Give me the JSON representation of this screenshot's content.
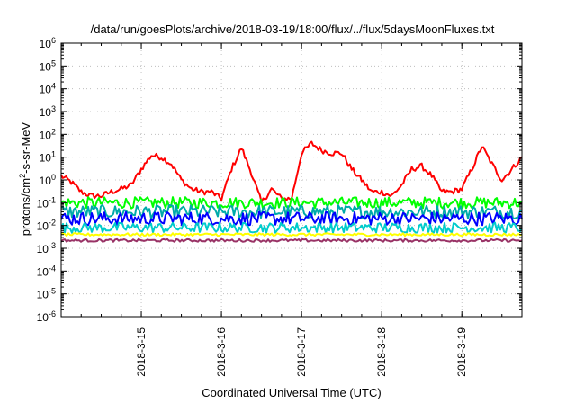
{
  "chart_data": {
    "type": "line",
    "title": "/data/run/goesPlots/archive/2018-03-19/18:00/flux/../flux/5daysMoonFluxes.txt",
    "xlabel": "Coordinated Universal Time (UTC)",
    "ylabel": "protons/cm²-s-sr-MeV",
    "ylabel_parts": {
      "before": "protons/cm",
      "sup": "2",
      "after": "-s-sr-MeV"
    },
    "y_scale": "log",
    "ylim": [
      1e-06,
      1000000.0
    ],
    "xlim": [
      "2018-03-14 00:00",
      "2018-03-19 18:00"
    ],
    "y_ticks": [
      {
        "value": 1e-06,
        "base": "10",
        "exp": "-6"
      },
      {
        "value": 1e-05,
        "base": "10",
        "exp": "-5"
      },
      {
        "value": 0.0001,
        "base": "10",
        "exp": "-4"
      },
      {
        "value": 0.001,
        "base": "10",
        "exp": "-3"
      },
      {
        "value": 0.01,
        "base": "10",
        "exp": "-2"
      },
      {
        "value": 0.1,
        "base": "10",
        "exp": "-1"
      },
      {
        "value": 1.0,
        "base": "10",
        "exp": "0"
      },
      {
        "value": 10.0,
        "base": "10",
        "exp": "1"
      },
      {
        "value": 100.0,
        "base": "10",
        "exp": "2"
      },
      {
        "value": 1000.0,
        "base": "10",
        "exp": "3"
      },
      {
        "value": 10000.0,
        "base": "10",
        "exp": "4"
      },
      {
        "value": 100000.0,
        "base": "10",
        "exp": "5"
      },
      {
        "value": 1000000.0,
        "base": "10",
        "exp": "6"
      }
    ],
    "x_ticks": [
      {
        "x": "2018-03-15 00:00",
        "label": "2018-3-15"
      },
      {
        "x": "2018-03-16 00:00",
        "label": "2018-3-16"
      },
      {
        "x": "2018-03-17 00:00",
        "label": "2018-3-17"
      },
      {
        "x": "2018-03-18 00:00",
        "label": "2018-3-18"
      },
      {
        "x": "2018-03-19 00:00",
        "label": "2018-3-19"
      }
    ],
    "grid": true,
    "legend": "none",
    "series": [
      {
        "color": "#ff0000",
        "x": [
          "2018-03-14 00:00",
          "2018-03-14 03:00",
          "2018-03-14 06:00",
          "2018-03-14 09:00",
          "2018-03-14 12:00",
          "2018-03-14 15:00",
          "2018-03-14 18:00",
          "2018-03-14 21:00",
          "2018-03-15 00:00",
          "2018-03-15 03:00",
          "2018-03-15 06:00",
          "2018-03-15 09:00",
          "2018-03-15 12:00",
          "2018-03-15 15:00",
          "2018-03-15 18:00",
          "2018-03-15 21:00",
          "2018-03-16 00:00",
          "2018-03-16 03:00",
          "2018-03-16 06:00",
          "2018-03-16 09:00",
          "2018-03-16 12:00",
          "2018-03-16 15:00",
          "2018-03-16 18:00",
          "2018-03-16 21:00",
          "2018-03-17 00:00",
          "2018-03-17 03:00",
          "2018-03-17 06:00",
          "2018-03-17 09:00",
          "2018-03-17 12:00",
          "2018-03-17 15:00",
          "2018-03-17 18:00",
          "2018-03-17 21:00",
          "2018-03-18 00:00",
          "2018-03-18 03:00",
          "2018-03-18 06:00",
          "2018-03-18 09:00",
          "2018-03-18 12:00",
          "2018-03-18 15:00",
          "2018-03-18 18:00",
          "2018-03-18 21:00",
          "2018-03-19 00:00",
          "2018-03-19 03:00",
          "2018-03-19 06:00",
          "2018-03-19 09:00",
          "2018-03-19 12:00",
          "2018-03-19 15:00",
          "2018-03-19 18:00"
        ],
        "y": [
          1.5,
          0.8,
          0.3,
          0.2,
          0.2,
          0.3,
          0.4,
          0.6,
          3,
          12,
          10,
          5,
          1,
          0.4,
          0.3,
          0.3,
          0.15,
          3,
          25,
          2,
          0.1,
          0.4,
          0.15,
          0.15,
          15,
          40,
          20,
          15,
          15,
          3,
          1,
          0.3,
          0.3,
          0.2,
          0.6,
          3,
          4,
          1.5,
          0.3,
          0.3,
          0.4,
          3,
          30,
          5,
          1,
          3,
          10
        ]
      },
      {
        "color": "#00ff00",
        "x": [
          "2018-03-14 00:00",
          "2018-03-19 18:00"
        ],
        "y": [
          0.1,
          0.1
        ]
      },
      {
        "color": "#00aaaa",
        "x": [
          "2018-03-14 00:00",
          "2018-03-19 18:00"
        ],
        "y": [
          0.04,
          0.04
        ]
      },
      {
        "color": "#0000ff",
        "x": [
          "2018-03-14 00:00",
          "2018-03-19 18:00"
        ],
        "y": [
          0.02,
          0.02
        ]
      },
      {
        "color": "#00cccc",
        "x": [
          "2018-03-14 00:00",
          "2018-03-19 18:00"
        ],
        "y": [
          0.008,
          0.008
        ]
      },
      {
        "color": "#ffff00",
        "x": [
          "2018-03-14 00:00",
          "2018-03-19 18:00"
        ],
        "y": [
          0.004,
          0.004
        ]
      },
      {
        "color": "#993366",
        "x": [
          "2018-03-14 00:00",
          "2018-03-19 18:00"
        ],
        "y": [
          0.0022,
          0.0022
        ]
      }
    ]
  }
}
